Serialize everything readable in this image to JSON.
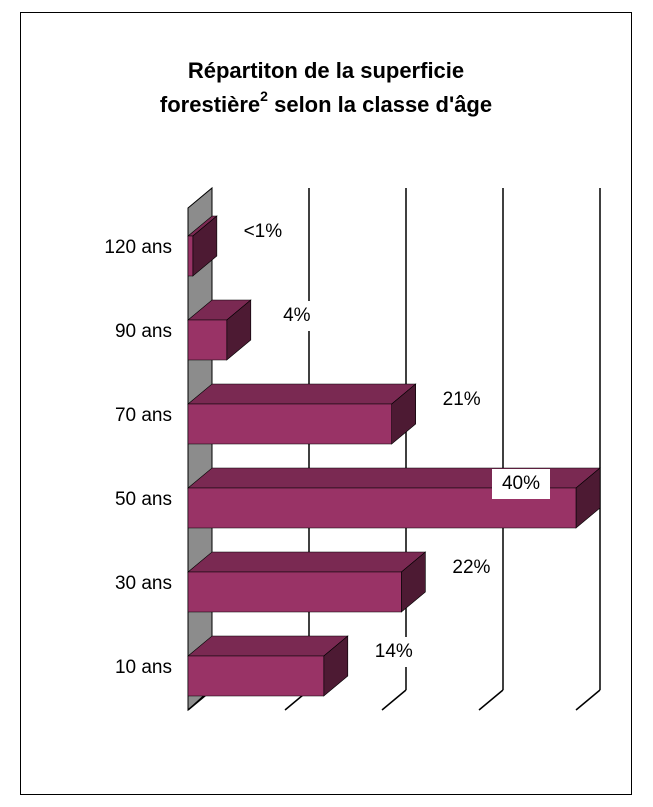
{
  "chart_data": {
    "type": "bar3d",
    "title_lines": [
      "Répartiton de la superficie",
      "forestière",
      "selon la classe d'âge"
    ],
    "title_superscript": "2",
    "categories": [
      "10 ans",
      "30 ans",
      "50 ans",
      "70 ans",
      "90 ans",
      "120 ans"
    ],
    "values": [
      14,
      22,
      40,
      21,
      4,
      0.5
    ],
    "value_labels": [
      "14%",
      "22%",
      "40%",
      "21%",
      "4%",
      "<1%"
    ],
    "color": "#993366",
    "xlim": [
      0,
      40
    ],
    "xticks": [
      0,
      10,
      20,
      30,
      40
    ],
    "grid": true
  }
}
